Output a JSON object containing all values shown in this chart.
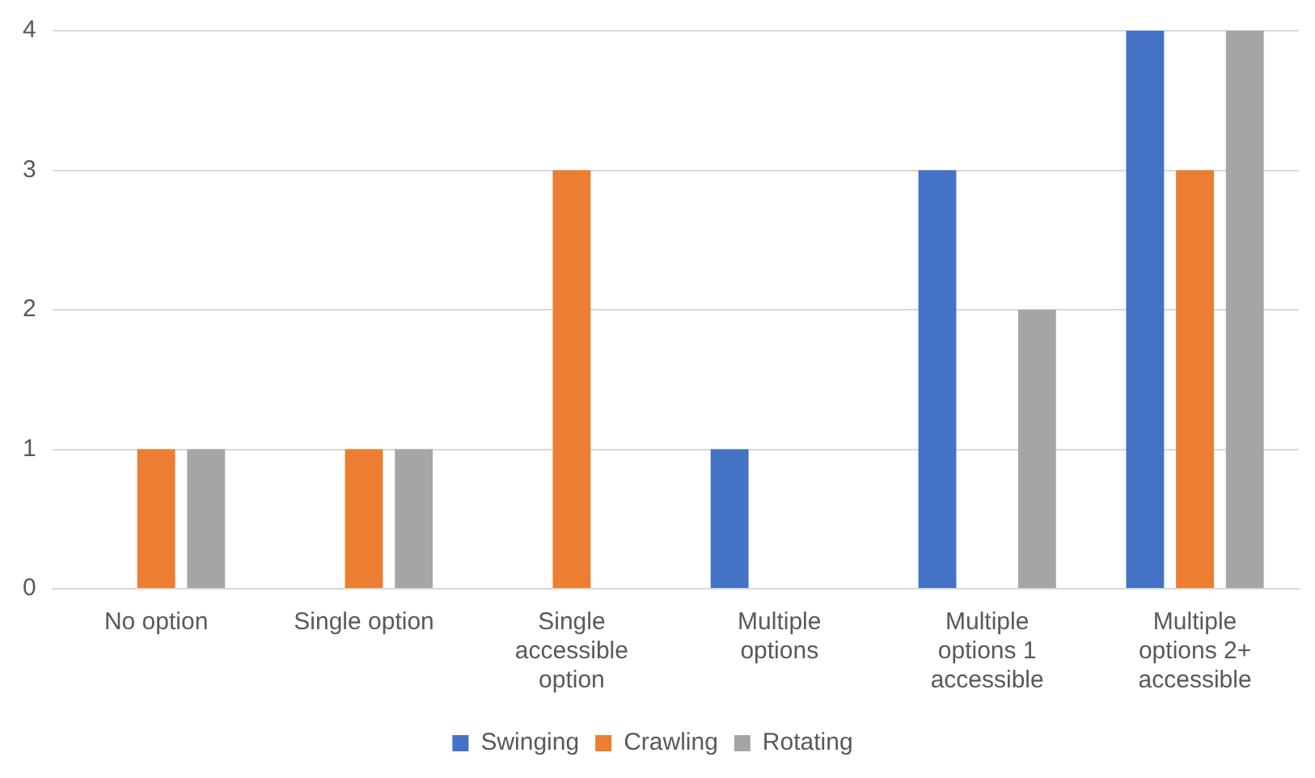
{
  "chart_data": {
    "type": "bar",
    "categories": [
      "No option",
      "Single option",
      "Single accessible option",
      "Multiple options",
      "Multiple options 1 accessible",
      "Multiple options 2+ accessible"
    ],
    "series": [
      {
        "name": "Swinging",
        "color": "#4472c4",
        "values": [
          0,
          0,
          0,
          1,
          3,
          4
        ]
      },
      {
        "name": "Crawling",
        "color": "#ed7d31",
        "values": [
          1,
          1,
          3,
          0,
          0,
          3
        ]
      },
      {
        "name": "Rotating",
        "color": "#a5a5a5",
        "values": [
          1,
          1,
          0,
          0,
          2,
          4
        ]
      }
    ],
    "ylim": [
      0,
      4
    ],
    "yticks": [
      0,
      1,
      2,
      3,
      4
    ],
    "grid": "y",
    "legend": "bottom"
  }
}
